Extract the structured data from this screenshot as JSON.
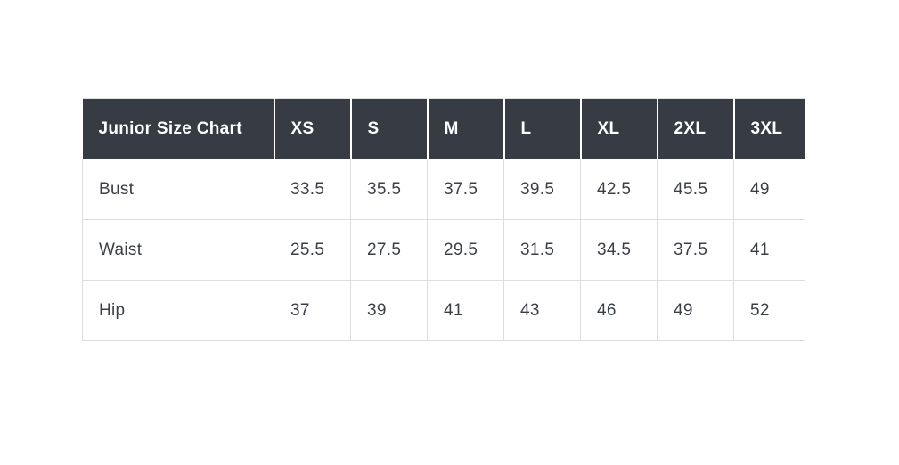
{
  "chart_data": {
    "type": "table",
    "title": "Junior Size Chart",
    "columns": [
      "Junior Size Chart",
      "XS",
      "S",
      "M",
      "L",
      "XL",
      "2XL",
      "3XL"
    ],
    "rows": [
      [
        "Bust",
        "33.5",
        "35.5",
        "37.5",
        "39.5",
        "42.5",
        "45.5",
        "49"
      ],
      [
        "Waist",
        "25.5",
        "27.5",
        "29.5",
        "31.5",
        "34.5",
        "37.5",
        "41"
      ],
      [
        "Hip",
        "37",
        "39",
        "41",
        "43",
        "46",
        "49",
        "52"
      ]
    ],
    "layout": {
      "header_position": "top-row",
      "grid": "on",
      "cell_text_align": "left"
    },
    "colors": {
      "header_background": "#363b44",
      "header_text": "#ffffff",
      "body_text": "#3b3f46",
      "grid_border": "#dddddd",
      "header_separator": "#ffffff",
      "page_background": "#ffffff"
    }
  }
}
